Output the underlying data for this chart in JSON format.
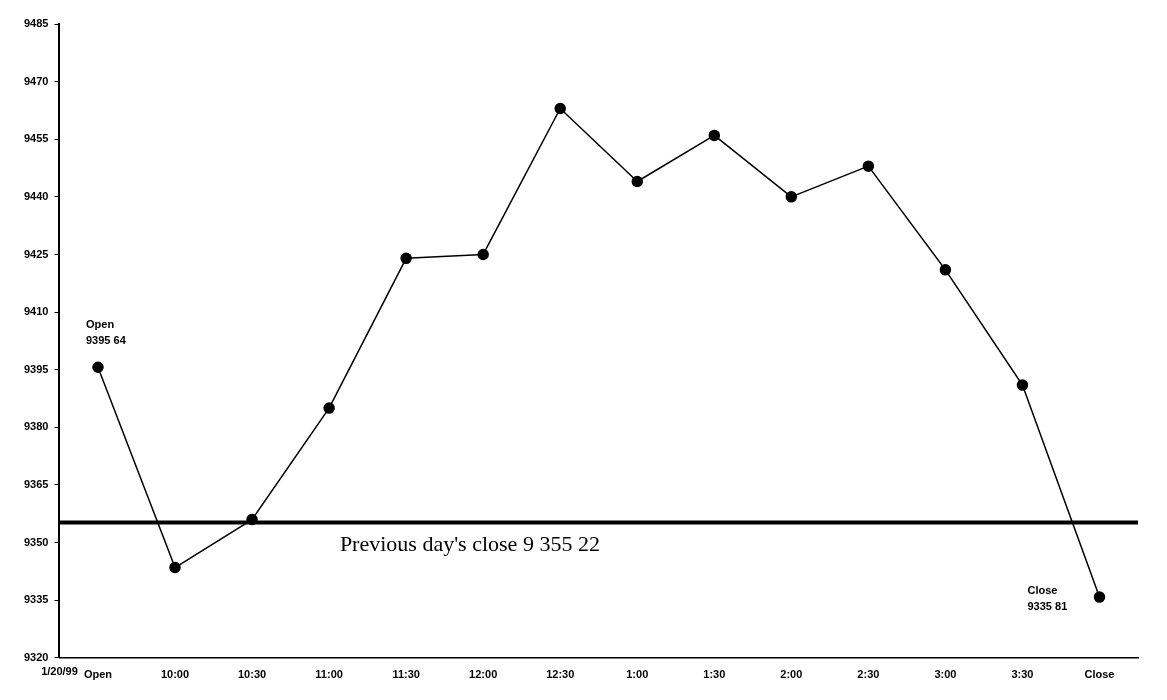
{
  "chart_data": {
    "type": "line",
    "categories": [
      "Open",
      "10:00",
      "10:30",
      "11:00",
      "11:30",
      "12:00",
      "12:30",
      "1:00",
      "1:30",
      "2:00",
      "2:30",
      "3:00",
      "3:30",
      "Close"
    ],
    "series": [
      {
        "color": "#000000",
        "values": [
          9395.64,
          9343.5,
          9356,
          9385,
          9424,
          9425,
          9463,
          9444,
          9456,
          9440,
          9448,
          9421,
          9391,
          9335.81
        ]
      }
    ],
    "ylim": [
      9320,
      9485
    ],
    "yticks": [
      9320,
      9335,
      9350,
      9365,
      9380,
      9395,
      9410,
      9425,
      9440,
      9455,
      9470,
      9485
    ],
    "grid": false,
    "legend": false,
    "marker": "circle",
    "line_style": "solid",
    "ref_lines": [
      {
        "axis": "y",
        "value": 9355.22,
        "label": "Previous day's close 9 355 22",
        "color": "#000000"
      }
    ],
    "annotations": [
      "1/20/99",
      {
        "text": "Open\n9395 64",
        "x": "Open",
        "y": 9395.64
      },
      {
        "text": "Close\n9335 81",
        "x": "Close",
        "y": 9335.81
      }
    ]
  }
}
